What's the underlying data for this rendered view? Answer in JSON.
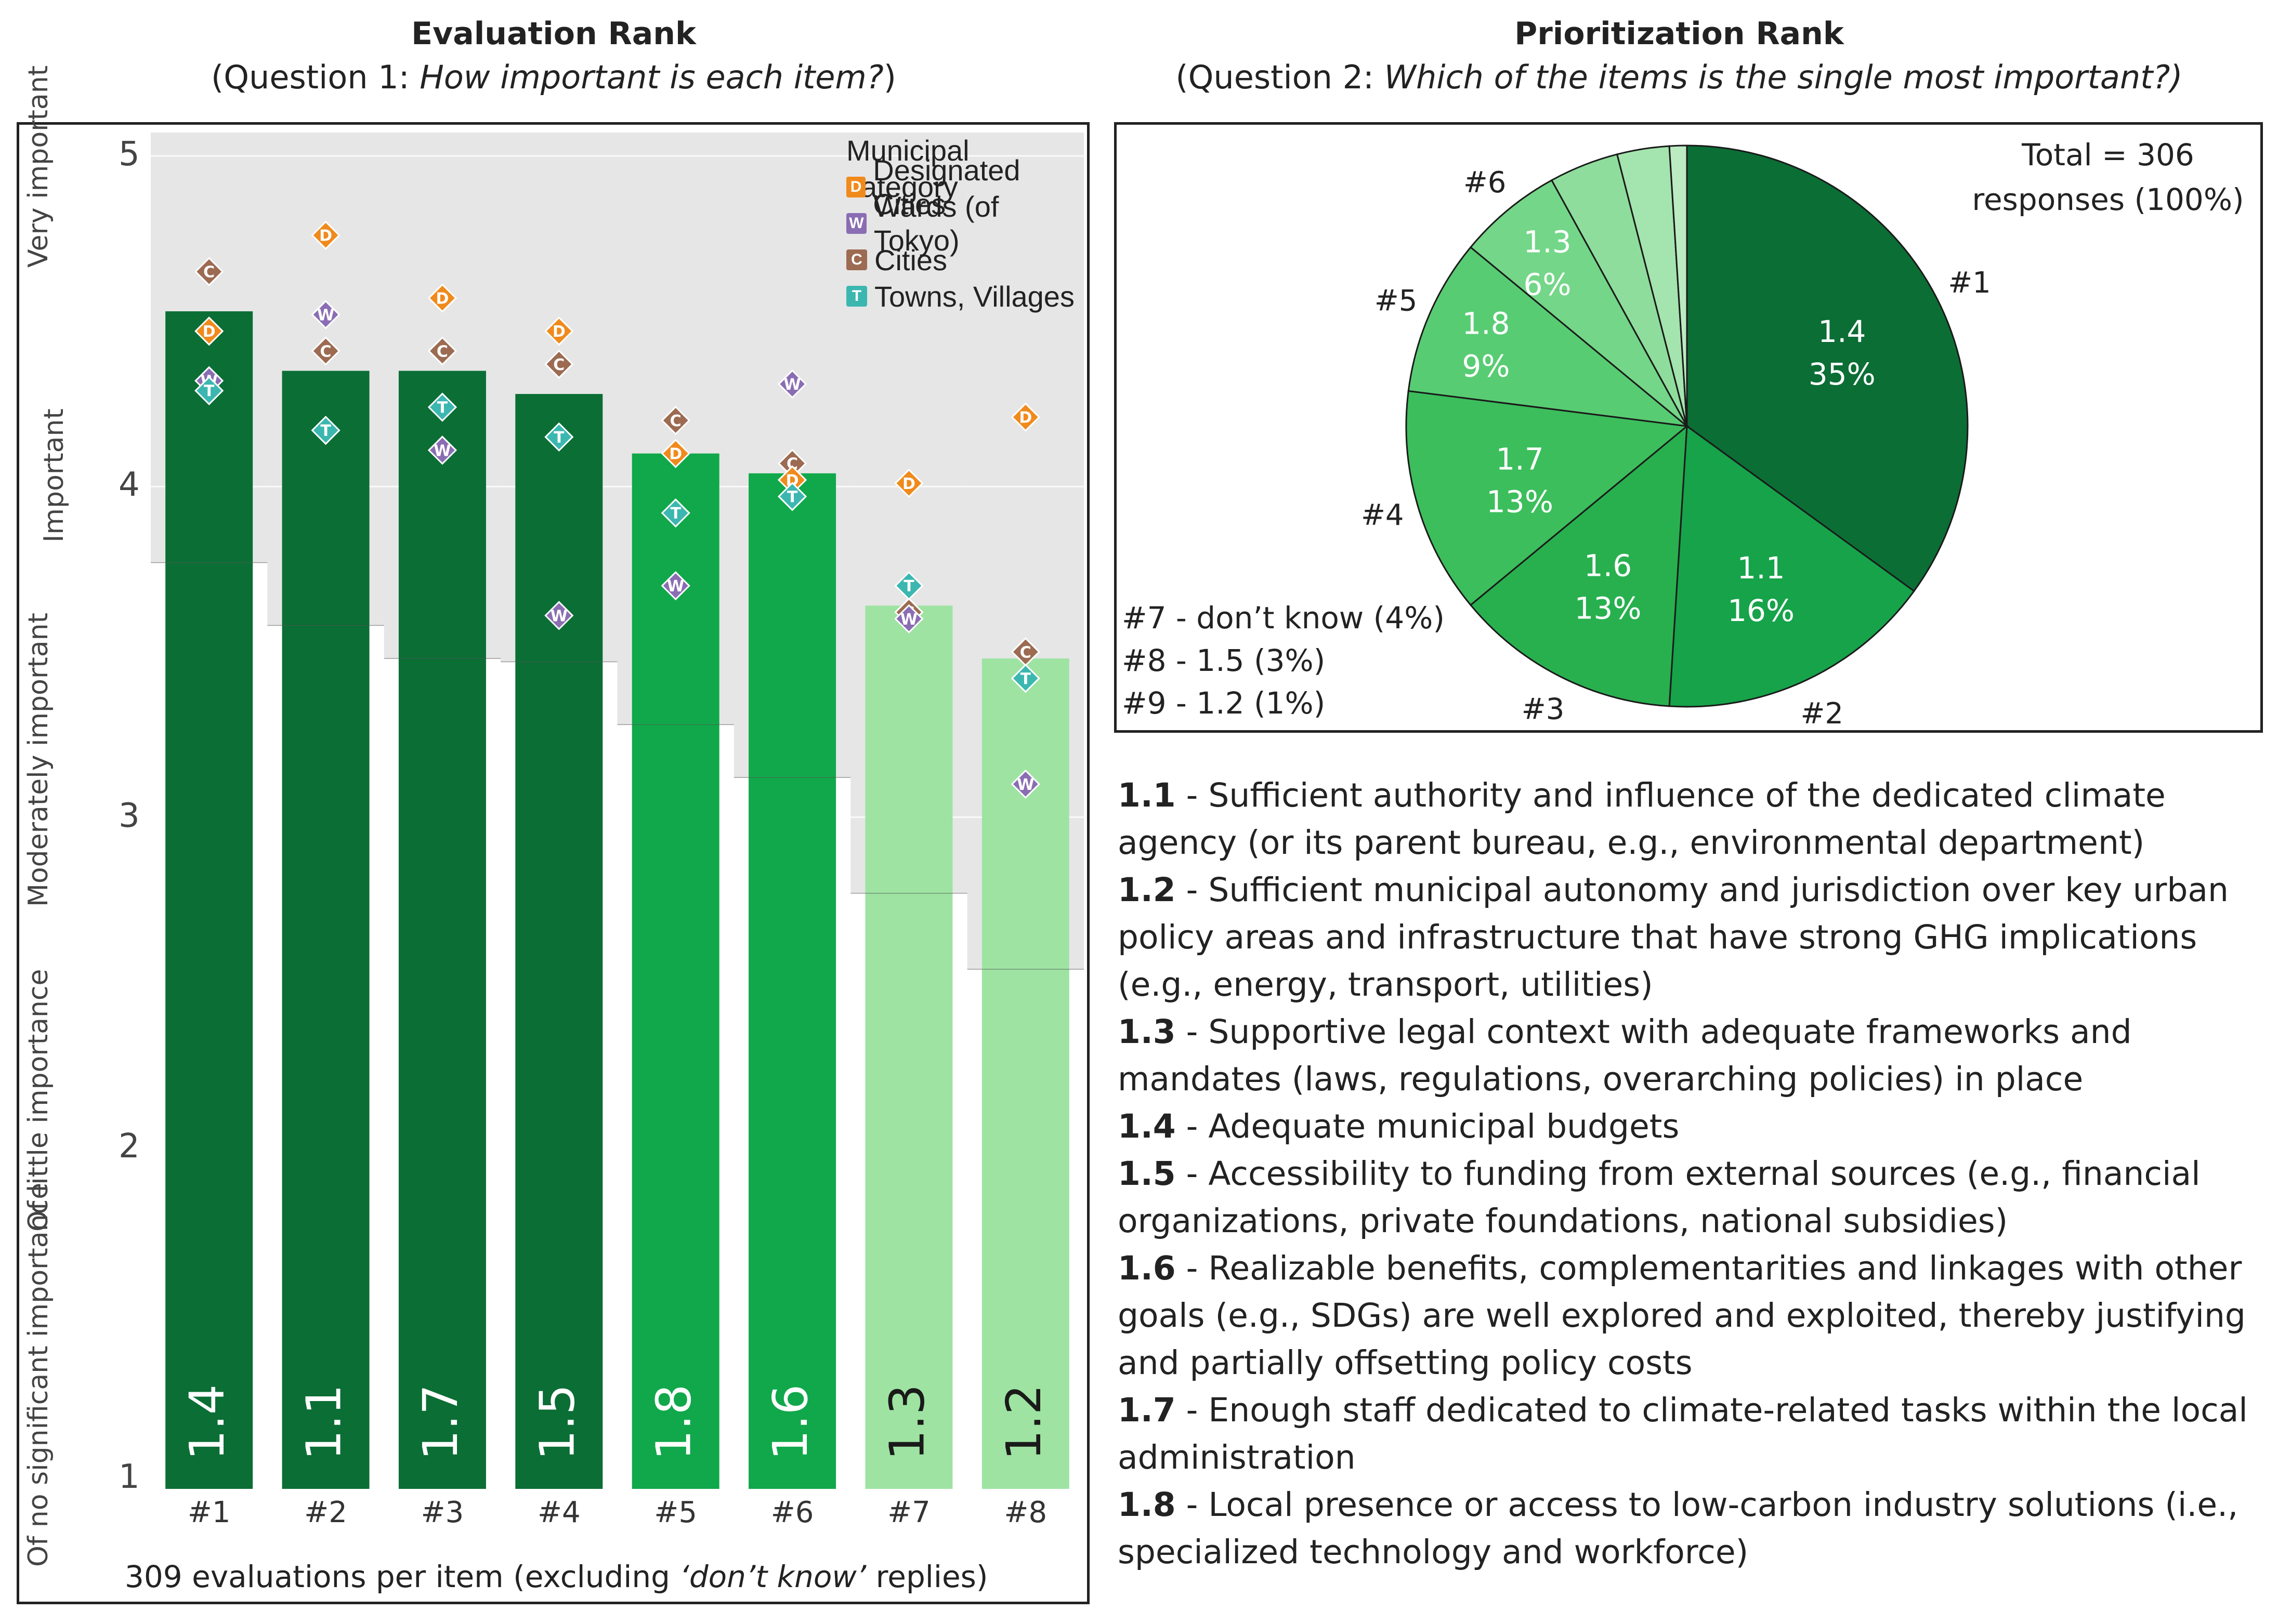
{
  "left_panel": {
    "title": "Evaluation Rank",
    "subtitle_prefix": "(Question 1: ",
    "subtitle_italic": "How important is each item?",
    "subtitle_suffix": ")",
    "y_category_labels": [
      "Very important",
      "Important",
      "Moderately important",
      "Of little importance",
      "Of no significant importance"
    ],
    "footnote_prefix": "309 evaluations per item (excluding ",
    "footnote_italic": "‘don’t know’",
    "footnote_suffix": " replies)",
    "legend": {
      "title": "Municipal category",
      "items": [
        {
          "code": "D",
          "label": "Designated Cities",
          "color": "#f08a1c"
        },
        {
          "code": "W",
          "label": "Wards (of Tokyo)",
          "color": "#8a6db3"
        },
        {
          "code": "C",
          "label": "Cities",
          "color": "#9c6b52"
        },
        {
          "code": "T",
          "label": "Towns, Villages",
          "color": "#3bb7b0"
        }
      ]
    }
  },
  "right_panel": {
    "title": "Prioritization Rank",
    "subtitle_prefix": "(Question 2: ",
    "subtitle_italic": "Which of the items is the single most important?)",
    "total_line1": "Total = 306",
    "total_line2": "responses (100%)",
    "small_slices": [
      "#7 - don’t know (4%)",
      "#8 - 1.5 (3%)",
      "#9 - 1.2 (1%)"
    ],
    "descriptions": [
      {
        "code": "1.1",
        "text": " - Sufficient authority and influence of the dedicated climate agency (or its parent bureau, e.g., environmental department)"
      },
      {
        "code": "1.2",
        "text": " - Sufficient municipal autonomy and jurisdiction over key urban policy areas and infrastructure that have strong GHG implications (e.g., energy, transport, utilities)"
      },
      {
        "code": "1.3",
        "text": " - Supportive legal context with adequate frameworks and mandates (laws, regulations, overarching policies) in place"
      },
      {
        "code": "1.4",
        "text": " - Adequate municipal budgets"
      },
      {
        "code": "1.5",
        "text": " - Accessibility to funding from external sources (e.g., financial organizations, private foundations, national subsidies)"
      },
      {
        "code": "1.6",
        "text": " - Realizable benefits, complementarities and linkages with other goals (e.g., SDGs) are well explored and exploited, thereby justifying and partially offsetting policy costs"
      },
      {
        "code": "1.7",
        "text": " - Enough staff dedicated to climate-related tasks within the local administration"
      },
      {
        "code": "1.8",
        "text": " - Local presence or access to low-carbon industry solutions (i.e., specialized technology and workforce)"
      }
    ]
  },
  "chart_data": [
    {
      "type": "bar",
      "title": "Evaluation Rank",
      "ylim": [
        1,
        5
      ],
      "yticks": [
        1,
        2,
        3,
        4,
        5
      ],
      "categories": [
        "#1",
        "#2",
        "#3",
        "#4",
        "#5",
        "#6",
        "#7",
        "#8"
      ],
      "bar_labels": [
        "1.4",
        "1.1",
        "1.7",
        "1.5",
        "1.8",
        "1.6",
        "1.3",
        "1.2"
      ],
      "values": [
        4.53,
        4.35,
        4.35,
        4.28,
        4.1,
        4.04,
        3.64,
        3.48
      ],
      "bar_colors": [
        "#0b6e35",
        "#0b6e35",
        "#0b6e35",
        "#0b6e35",
        "#10a84a",
        "#10a84a",
        "#9ee3a2",
        "#9ee3a2"
      ],
      "band_bottoms": [
        3.77,
        3.58,
        3.48,
        3.47,
        3.28,
        3.12,
        2.77,
        2.54
      ],
      "points": [
        {
          "code": "C",
          "values": [
            4.65,
            4.41,
            4.41,
            4.37,
            4.2,
            4.07,
            3.62,
            3.5
          ]
        },
        {
          "code": "D",
          "values": [
            4.47,
            4.76,
            4.57,
            4.47,
            4.1,
            4.02,
            4.01,
            4.21
          ]
        },
        {
          "code": "W",
          "values": [
            4.32,
            4.52,
            4.11,
            3.61,
            3.7,
            4.31,
            3.6,
            3.1
          ]
        },
        {
          "code": "T",
          "values": [
            4.29,
            4.17,
            4.24,
            4.15,
            3.92,
            3.97,
            3.7,
            3.42
          ]
        }
      ]
    },
    {
      "type": "pie",
      "title": "Prioritization Rank",
      "total": 306,
      "slices": [
        {
          "rank": "#1",
          "label": "1.4",
          "percent": 35,
          "pct_text": "35%",
          "color": "#0b6e35"
        },
        {
          "rank": "#2",
          "label": "1.1",
          "percent": 16,
          "pct_text": "16%",
          "color": "#16a34a"
        },
        {
          "rank": "#3",
          "label": "1.6",
          "percent": 13,
          "pct_text": "13%",
          "color": "#28b04f"
        },
        {
          "rank": "#4",
          "label": "1.7",
          "percent": 13,
          "pct_text": "13%",
          "color": "#3cbe5c"
        },
        {
          "rank": "#5",
          "label": "1.8",
          "percent": 9,
          "pct_text": "9%",
          "color": "#58cc73"
        },
        {
          "rank": "#6",
          "label": "1.3",
          "percent": 6,
          "pct_text": "6%",
          "color": "#74d688"
        },
        {
          "rank": "#7",
          "label": "",
          "percent": 4,
          "pct_text": "",
          "color": "#8edd9c"
        },
        {
          "rank": "#8",
          "label": "",
          "percent": 3,
          "pct_text": "",
          "color": "#a4e4ae"
        },
        {
          "rank": "#9",
          "label": "",
          "percent": 1,
          "pct_text": "",
          "color": "#bcebc2"
        }
      ]
    }
  ]
}
